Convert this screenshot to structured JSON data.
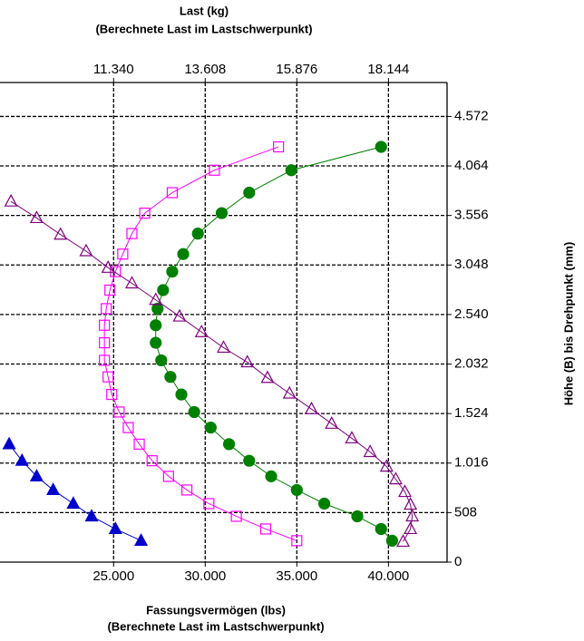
{
  "chart_data": {
    "type": "scatter",
    "x2label": [
      "Last (kg)",
      "(Berechnete Last im Lastschwerpunkt)"
    ],
    "xlabel": [
      "Fassungsvermögen (lbs)",
      "(Berechnete Last im Lastschwerpunkt)"
    ],
    "ylabel": "Höhe (B) bis Drehpunkt (mm)",
    "xlim": [
      18800,
      43200
    ],
    "xticks": [
      {
        "value": 25000,
        "label": "25.000"
      },
      {
        "value": 30000,
        "label": "30.000"
      },
      {
        "value": 35000,
        "label": "35.000"
      },
      {
        "value": 40000,
        "label": "40.000"
      }
    ],
    "x2lim": [
      8528,
      19595
    ],
    "x2ticks": [
      {
        "value": 11340,
        "label": "11.340"
      },
      {
        "value": 13608,
        "label": "13.608"
      },
      {
        "value": 15876,
        "label": "15.876"
      },
      {
        "value": 18144,
        "label": "18.144"
      }
    ],
    "ylim": [
      0,
      4920
    ],
    "yticks": [
      0,
      508,
      {
        "value": 1016,
        "label": "1.016"
      },
      {
        "value": 1524,
        "label": "1.524"
      },
      {
        "value": 2032,
        "label": "2.032"
      },
      {
        "value": 2540,
        "label": "2.540"
      },
      {
        "value": 3048,
        "label": "3.048"
      },
      {
        "value": 3556,
        "label": "3.556"
      },
      {
        "value": 4064,
        "label": "4.064"
      },
      {
        "value": 4572,
        "label": "4.572"
      }
    ],
    "grid": true,
    "series": [
      {
        "color": "#008000",
        "marker": "circle",
        "filled": true,
        "x": [
          40200,
          39600,
          38300,
          36500,
          35000,
          33600,
          32400,
          31300,
          30300,
          29400,
          28700,
          28100,
          27600,
          27300,
          27300,
          27400,
          27700,
          28200,
          28800,
          29600,
          30900,
          32400,
          34700,
          39600
        ],
        "values": [
          220,
          340,
          470,
          600,
          740,
          880,
          1040,
          1210,
          1380,
          1540,
          1720,
          1900,
          2070,
          2250,
          2430,
          2600,
          2790,
          2980,
          3160,
          3370,
          3580,
          3790,
          4020,
          4260
        ]
      },
      {
        "color": "#ff00ff",
        "marker": "square",
        "filled": false,
        "x": [
          35000,
          33300,
          31700,
          30200,
          29000,
          28000,
          27100,
          26400,
          25800,
          25300,
          24900,
          24700,
          24500,
          24500,
          24500,
          24600,
          24800,
          25100,
          25500,
          26000,
          26700,
          28200,
          30500,
          34000
        ],
        "values": [
          220,
          340,
          470,
          600,
          740,
          880,
          1040,
          1210,
          1380,
          1540,
          1720,
          1900,
          2070,
          2250,
          2430,
          2600,
          2790,
          2980,
          3160,
          3370,
          3580,
          3790,
          4020,
          4260
        ]
      },
      {
        "color": "#800080",
        "marker": "triangle",
        "filled": false,
        "x": [
          40800,
          41200,
          41300,
          41200,
          40900,
          40400,
          39900,
          39000,
          38000,
          36900,
          35800,
          34600,
          33400,
          32300,
          31000,
          29800,
          28600,
          27300,
          26000,
          24700,
          23500,
          22100,
          20800,
          19400
        ],
        "values": [
          210,
          340,
          470,
          590,
          720,
          850,
          980,
          1130,
          1270,
          1420,
          1570,
          1730,
          1890,
          2050,
          2200,
          2360,
          2520,
          2690,
          2860,
          3020,
          3190,
          3360,
          3530,
          3700
        ]
      },
      {
        "color": "#0000cd",
        "marker": "triangle",
        "filled": true,
        "x": [
          26500,
          25100,
          23800,
          22800,
          21700,
          20800,
          20000,
          19300
        ],
        "values": [
          220,
          340,
          470,
          600,
          740,
          880,
          1040,
          1210
        ]
      }
    ]
  }
}
